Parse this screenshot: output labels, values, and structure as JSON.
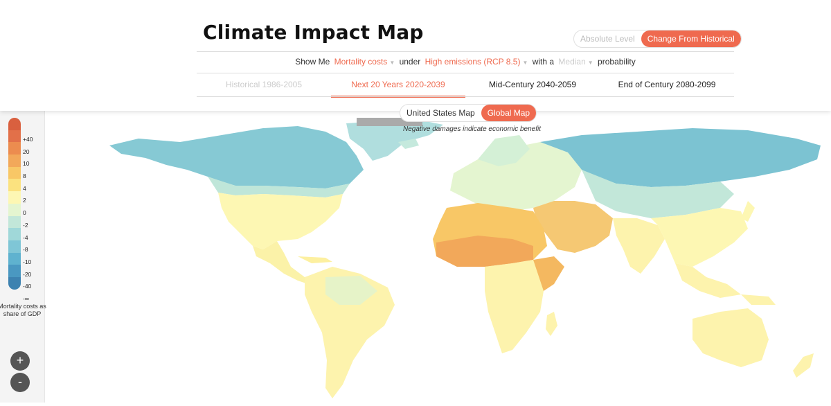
{
  "header": {
    "title": "Climate Impact Map",
    "mode_toggle": {
      "absolute": "Absolute Level",
      "change": "Change From Historical",
      "active": "change"
    }
  },
  "controls": {
    "show_me": "Show Me",
    "metric": "Mortality costs",
    "under": "under",
    "scenario": "High emissions (RCP 8.5)",
    "with_a": "with a",
    "probability_value": "Median",
    "probability": "probability"
  },
  "tabs": [
    {
      "label": "Historical 1986-2005",
      "state": "disabled"
    },
    {
      "label": "Next 20 Years 2020-2039",
      "state": "active"
    },
    {
      "label": "Mid-Century 2040-2059",
      "state": "normal"
    },
    {
      "label": "End of Century 2080-2099",
      "state": "normal"
    }
  ],
  "map_toggle": {
    "us": "United States Map",
    "global": "Global Map",
    "active": "global"
  },
  "note": "Negative damages indicate economic benefit",
  "legend": {
    "ticks": [
      "+40",
      "20",
      "10",
      "8",
      "4",
      "2",
      "0",
      "-2",
      "-4",
      "-8",
      "-10",
      "-20",
      "-40",
      "-∞"
    ],
    "colors": [
      "#d9603f",
      "#e27049",
      "#ec8c4f",
      "#f2a85a",
      "#f8c766",
      "#fbe27f",
      "#fdf7b3",
      "#e4f5d0",
      "#c2e7d9",
      "#a0d8d9",
      "#7fc6d6",
      "#5fb2cf",
      "#4a98c1",
      "#3d82b0"
    ],
    "caption_line1": "Mortality costs as",
    "caption_line2": "share of GDP"
  },
  "zoom": {
    "in": "+",
    "out": "-"
  }
}
